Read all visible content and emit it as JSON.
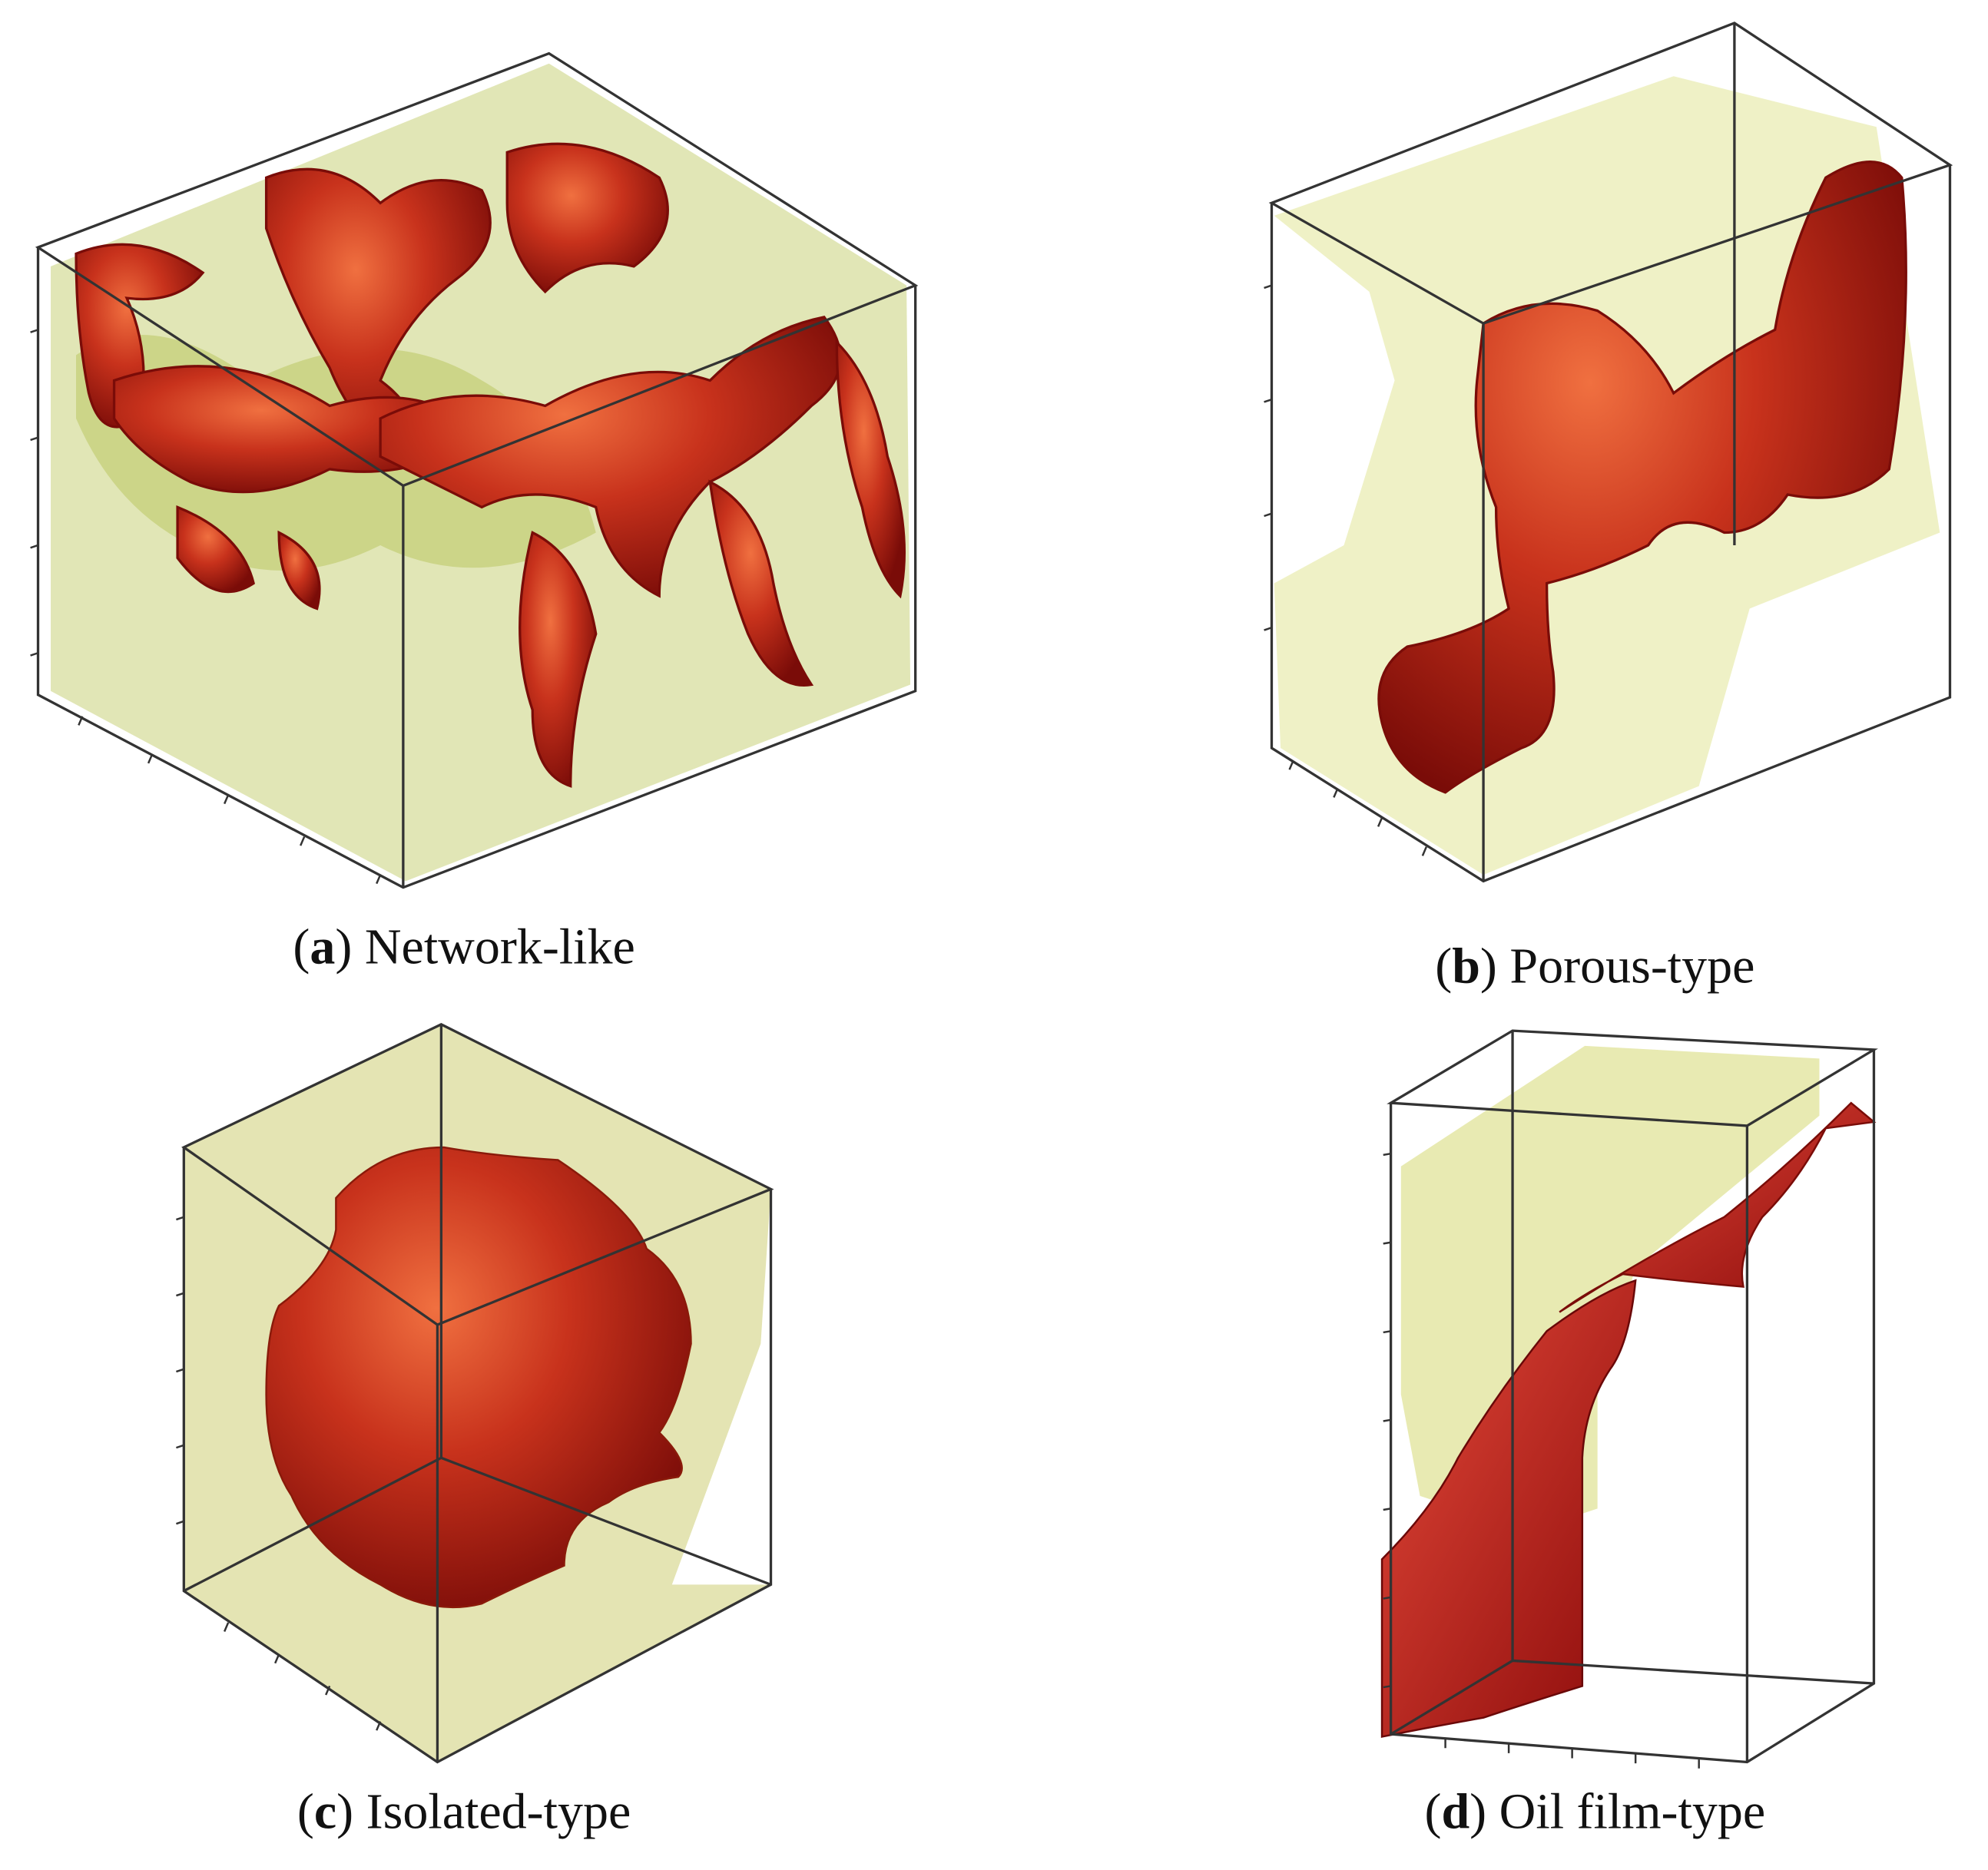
{
  "panels": [
    {
      "caption": {
        "open": "(",
        "letter": "a",
        "close": ")",
        "text": "Network-like"
      }
    },
    {
      "caption": {
        "open": "(",
        "letter": "b",
        "close": ")",
        "text": "Porous-type"
      }
    },
    {
      "caption": {
        "open": "(",
        "letter": "c",
        "close": ")",
        "text": "Isolated-type"
      }
    },
    {
      "caption": {
        "open": "(",
        "letter": "d",
        "close": ")",
        "text": "Oil film-type"
      }
    }
  ]
}
